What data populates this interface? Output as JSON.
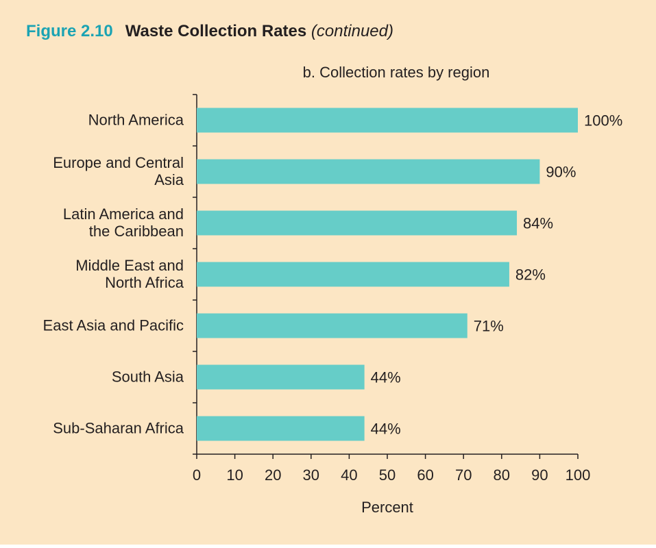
{
  "figure": {
    "number": "Figure 2.10",
    "title": "Waste Collection Rates",
    "continued": "(continued)"
  },
  "colors": {
    "background": "#fce6c4",
    "bar": "#66cdc8",
    "accent": "#1ba3b3"
  },
  "chart_data": {
    "type": "bar",
    "orientation": "horizontal",
    "subtitle": "b. Collection rates by region",
    "categories": [
      "North America",
      "Europe and Central Asia",
      "Latin America and the Caribbean",
      "Middle East and North Africa",
      "East Asia and Pacific",
      "South Asia",
      "Sub-Saharan Africa"
    ],
    "category_label_lines": [
      [
        "North America"
      ],
      [
        "Europe and Central",
        "Asia"
      ],
      [
        "Latin America and",
        "the Caribbean"
      ],
      [
        "Middle East and",
        "North Africa"
      ],
      [
        "East Asia and Pacific"
      ],
      [
        "South Asia"
      ],
      [
        "Sub-Saharan Africa"
      ]
    ],
    "values": [
      100,
      90,
      84,
      82,
      71,
      44,
      44
    ],
    "data_labels": [
      "100%",
      "90%",
      "84%",
      "82%",
      "71%",
      "44%",
      "44%"
    ],
    "xlabel": "Percent",
    "ylabel": "",
    "xlim": [
      0,
      100
    ],
    "xticks": [
      0,
      10,
      20,
      30,
      40,
      50,
      60,
      70,
      80,
      90,
      100
    ],
    "grid": false,
    "legend": "none"
  }
}
